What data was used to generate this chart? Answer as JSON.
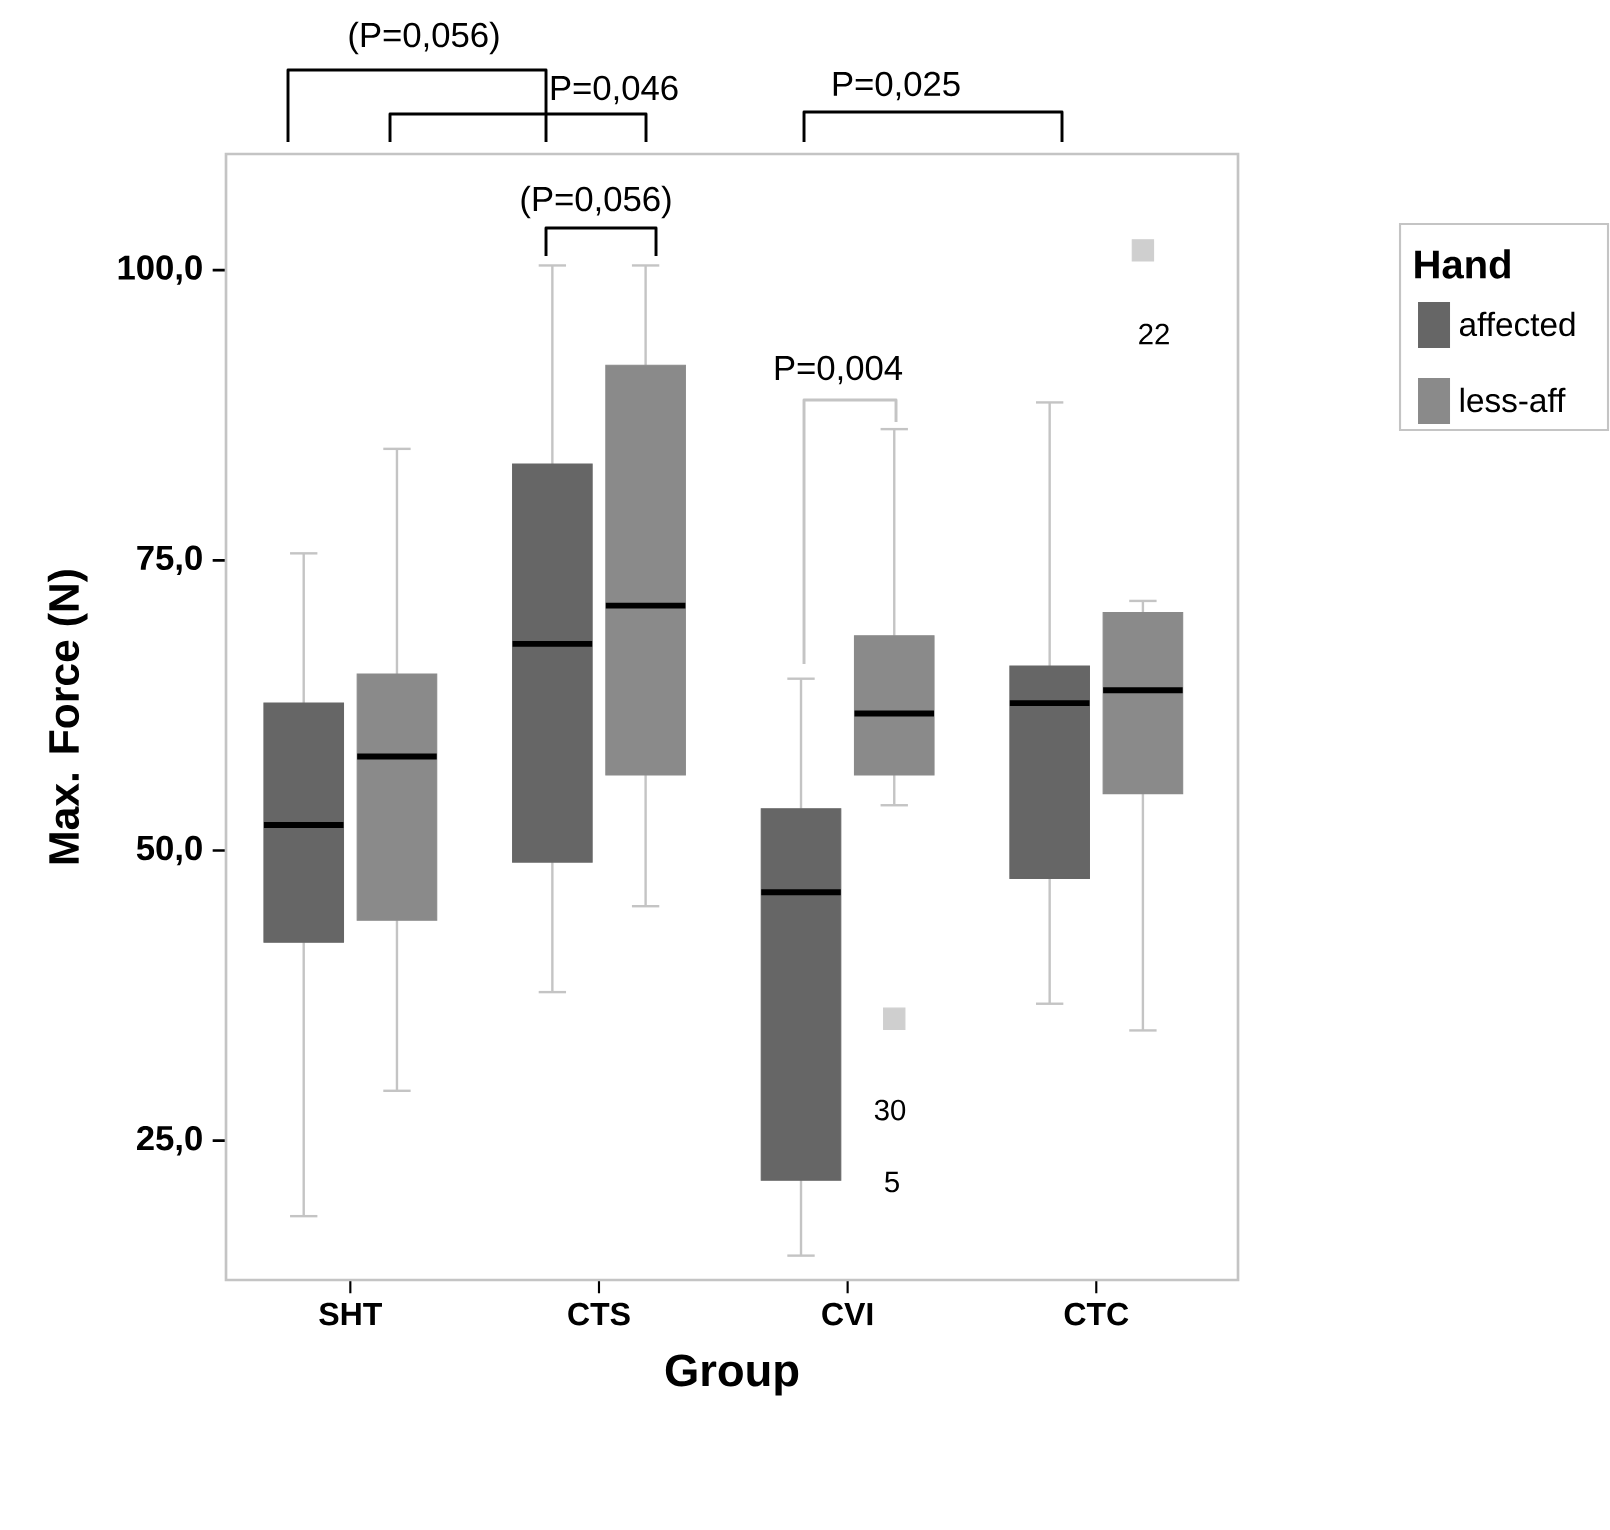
{
  "chart_data": {
    "type": "box",
    "xlabel": "Group",
    "ylabel": "Max. Force (N)",
    "legend_title": "Hand",
    "categories": [
      "SHT",
      "CTS",
      "CVI",
      "CTC"
    ],
    "ylim": [
      13,
      110
    ],
    "yticks": [
      {
        "value": 25,
        "label": "25,0"
      },
      {
        "value": 50,
        "label": "50,0"
      },
      {
        "value": 75,
        "label": "75,0"
      },
      {
        "value": 100,
        "label": "100,0"
      }
    ],
    "series": [
      {
        "name": "affected",
        "color": "#666666",
        "boxes": [
          {
            "low": 18.5,
            "q1": 42.1,
            "median": 52.2,
            "q3": 62.7,
            "high": 75.6
          },
          {
            "low": 37.8,
            "q1": 49.0,
            "median": 67.8,
            "q3": 83.3,
            "high": 100.4
          },
          {
            "low": 15.1,
            "q1": 21.6,
            "median": 46.4,
            "q3": 53.6,
            "high": 64.8
          },
          {
            "low": 36.8,
            "q1": 47.6,
            "median": 62.7,
            "q3": 65.9,
            "high": 88.6
          }
        ]
      },
      {
        "name": "less-aff",
        "color": "#8a8a8a",
        "boxes": [
          {
            "low": 29.3,
            "q1": 44.0,
            "median": 58.1,
            "q3": 65.2,
            "high": 84.6
          },
          {
            "low": 45.2,
            "q1": 56.5,
            "median": 71.1,
            "q3": 91.8,
            "high": 100.4
          },
          {
            "low": 53.9,
            "q1": 56.5,
            "median": 61.8,
            "q3": 68.5,
            "high": 86.3,
            "outliers": [
              35.5
            ]
          },
          {
            "low": 34.5,
            "q1": 54.9,
            "median": 63.8,
            "q3": 70.5,
            "high": 71.5,
            "outliers": [
              101.7
            ]
          }
        ]
      }
    ],
    "annotations": [
      "(P=0,056)",
      "P=0,046",
      "P=0,025",
      "(P=0,056)",
      "P=0,004",
      "30",
      "5",
      "22"
    ],
    "legend": "right",
    "grid": false
  }
}
